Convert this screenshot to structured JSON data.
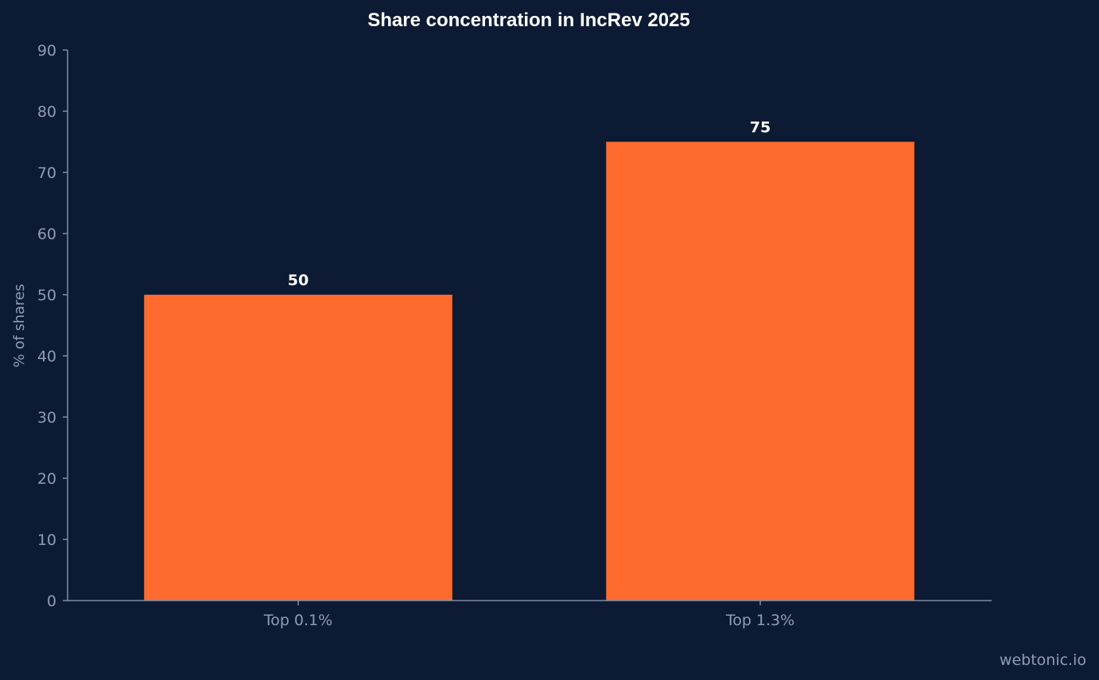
{
  "chart_data": {
    "type": "bar",
    "title": "Share concentration in IncRev 2025",
    "xlabel": "",
    "ylabel": "% of shares",
    "categories": [
      "Top 0.1%",
      "Top 1.3%"
    ],
    "values": [
      50,
      75
    ],
    "data_labels": [
      "50",
      "75"
    ],
    "ylim": [
      0,
      90
    ],
    "yticks": [
      0,
      10,
      20,
      30,
      40,
      50,
      60,
      70,
      80,
      90
    ],
    "grid": false,
    "bar_color": "#ff6b2e",
    "background_color": "#0c1b33"
  },
  "watermark": "webtonic.io"
}
